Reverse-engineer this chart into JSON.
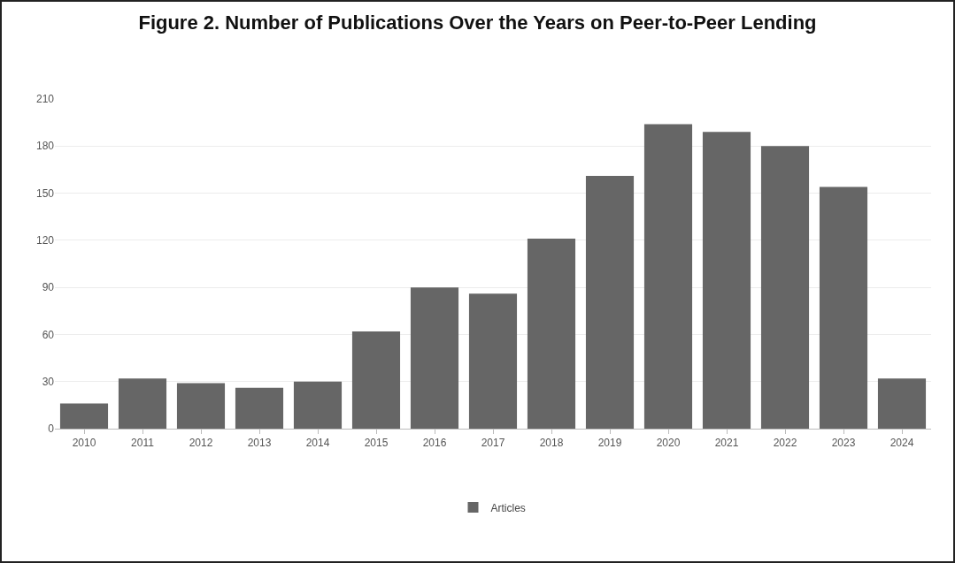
{
  "chart_data": {
    "type": "bar",
    "title": "Figure 2. Number of Publications Over the Years on Peer-to-Peer Lending",
    "categories": [
      "2010",
      "2011",
      "2012",
      "2013",
      "2014",
      "2015",
      "2016",
      "2017",
      "2018",
      "2019",
      "2020",
      "2021",
      "2022",
      "2023",
      "2024"
    ],
    "series": [
      {
        "name": "Articles",
        "color": "#666666",
        "values": [
          16,
          32,
          29,
          26,
          30,
          62,
          90,
          86,
          121,
          161,
          194,
          189,
          180,
          154,
          32
        ]
      }
    ],
    "ylim": [
      0,
      210
    ],
    "yticks": [
      0,
      30,
      60,
      90,
      120,
      150,
      180,
      210
    ],
    "grid": "y",
    "legend": "bottom"
  }
}
